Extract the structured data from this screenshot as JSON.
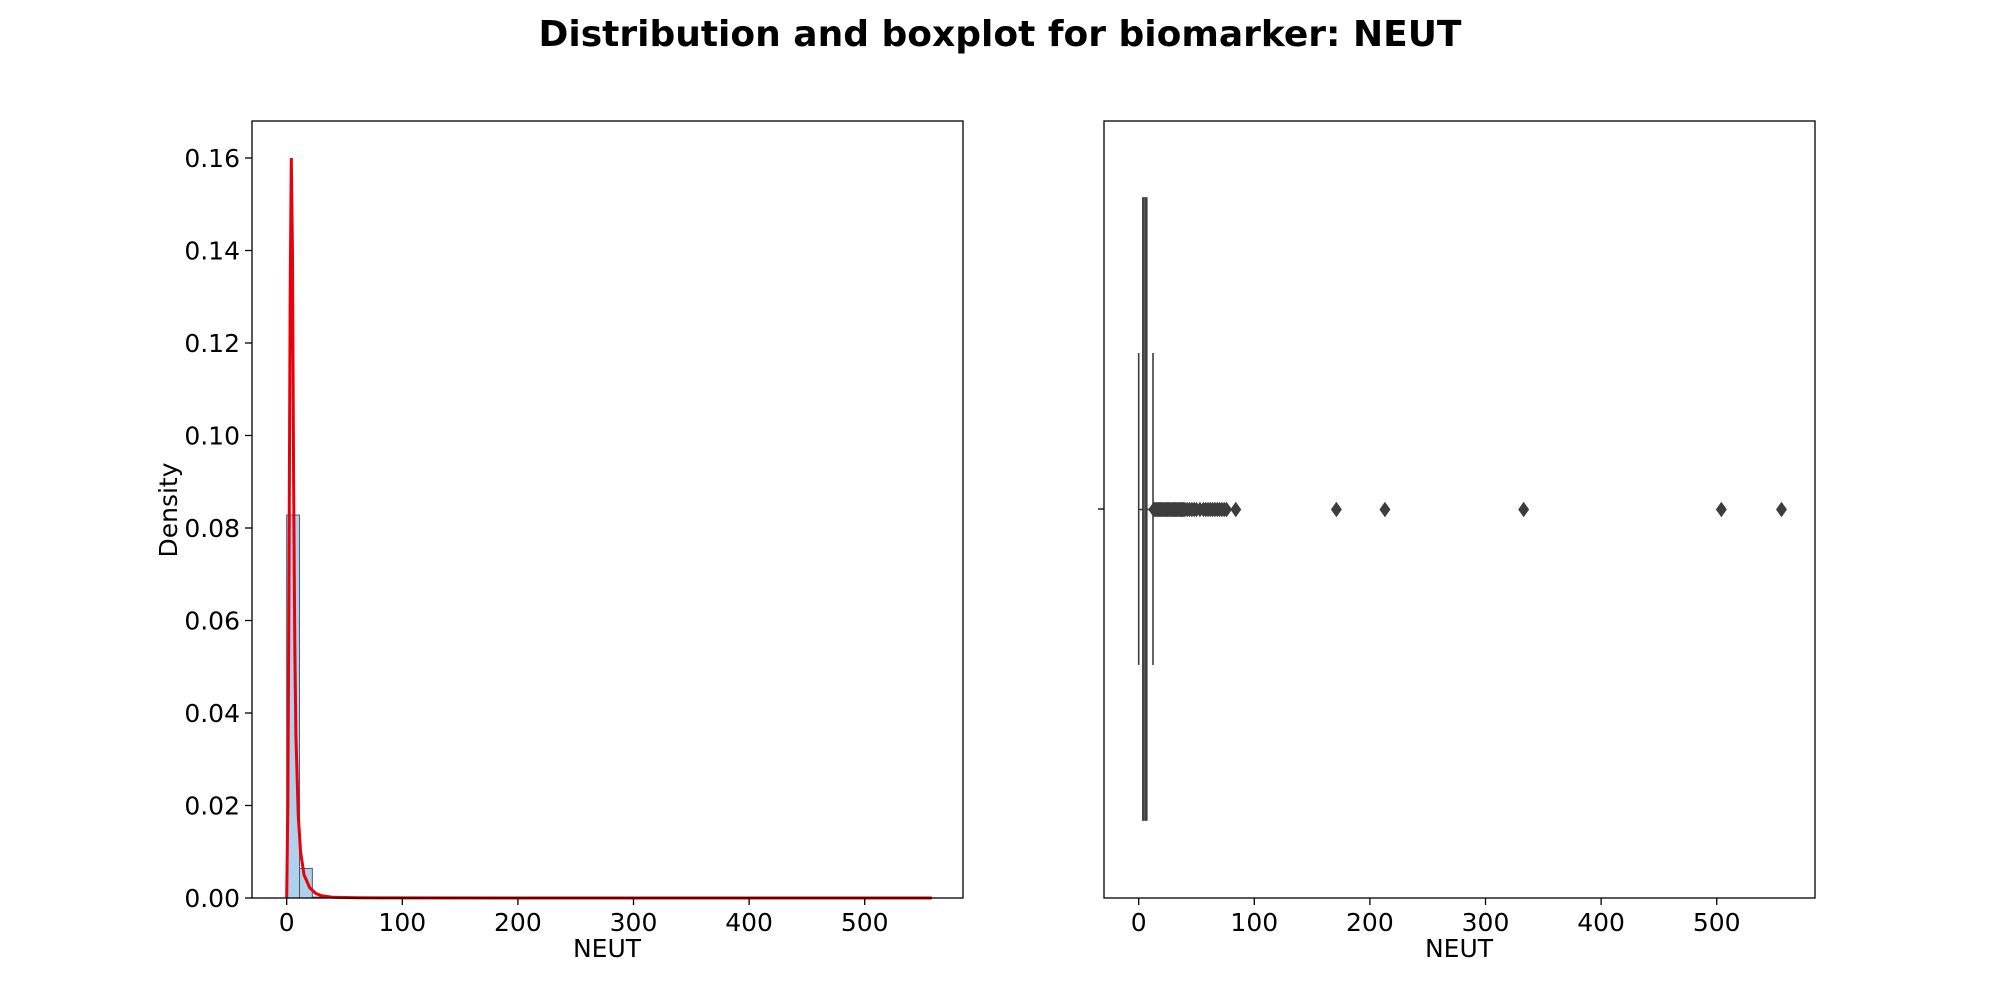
{
  "figure": {
    "title": "Distribution and boxplot for biomarker: NEUT"
  },
  "chart_data": [
    {
      "type": "histogram",
      "xlabel": "NEUT",
      "ylabel": "Density",
      "xlim": [
        -30,
        585
      ],
      "ylim": [
        0,
        0.168
      ],
      "xticks": [
        "0",
        "100",
        "200",
        "300",
        "400",
        "500"
      ],
      "yticks": [
        "0.00",
        "0.02",
        "0.04",
        "0.06",
        "0.08",
        "0.10",
        "0.12",
        "0.14",
        "0.16"
      ],
      "bins": [
        {
          "x0": 0,
          "x1": 11.1,
          "density": 0.0828
        },
        {
          "x0": 11.1,
          "x1": 22.2,
          "density": 0.0064
        },
        {
          "x0": 22.2,
          "x1": 33.3,
          "density": 0.0002
        },
        {
          "x0": 33.3,
          "x1": 44.4,
          "density": 5e-05
        }
      ],
      "kde": {
        "color": "#e8000b",
        "x": [
          0,
          1,
          2,
          3,
          4,
          5,
          6,
          7,
          8,
          10,
          12,
          15,
          20,
          25,
          30,
          40,
          60,
          100,
          200,
          300,
          400,
          500,
          558
        ],
        "y": [
          0.0,
          0.02,
          0.07,
          0.13,
          0.16,
          0.14,
          0.09,
          0.055,
          0.035,
          0.018,
          0.01,
          0.005,
          0.0022,
          0.001,
          0.0005,
          0.00015,
          5e-05,
          2e-05,
          1e-05,
          1e-05,
          5e-06,
          3e-06,
          0.0
        ]
      },
      "bar_color": "#a1c9e8",
      "grid": false
    },
    {
      "type": "boxplot",
      "xlabel": "NEUT",
      "ylabel": "",
      "xlim": [
        -30,
        585
      ],
      "xticks": [
        "0",
        "100",
        "200",
        "300",
        "400",
        "500"
      ],
      "box": {
        "q1": 3.6,
        "median": 5.0,
        "q3": 7.0,
        "whisker_low": 0.0,
        "whisker_high": 12.4
      },
      "outliers": [
        13,
        14,
        15,
        16,
        17,
        18,
        19,
        20,
        21,
        22,
        23,
        24,
        25,
        26,
        27,
        28,
        29,
        30,
        31,
        32,
        33,
        34,
        35,
        36,
        37,
        38,
        39,
        40,
        42,
        44,
        46,
        48,
        50,
        53,
        56,
        58,
        60,
        62,
        64,
        66,
        68,
        70,
        72,
        74,
        76,
        84,
        171,
        213,
        333,
        504,
        556
      ],
      "color": "#3d3d3d",
      "grid": false
    }
  ]
}
